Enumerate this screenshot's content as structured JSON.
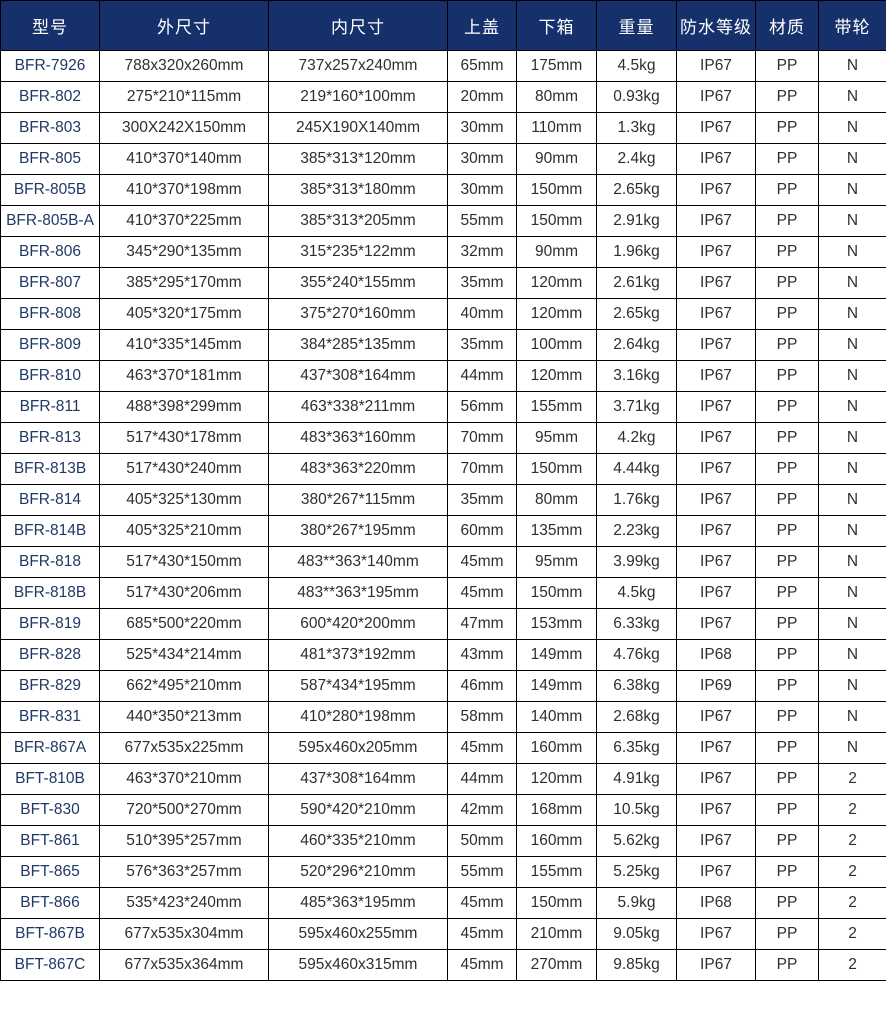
{
  "colors": {
    "header_bg": "#16306b",
    "header_text": "#ffffff",
    "border": "#000000",
    "model_text": "#1f3864",
    "body_text": "#2e2e2e"
  },
  "table": {
    "headers": [
      "型号",
      "外尺寸",
      "内尺寸",
      "上盖",
      "下箱",
      "重量",
      "防水等级",
      "材质",
      "带轮"
    ],
    "rows": [
      [
        "BFR-7926",
        "788x320x260mm",
        "737x257x240mm",
        "65mm",
        "175mm",
        "4.5kg",
        "IP67",
        "PP",
        "N"
      ],
      [
        "BFR-802",
        "275*210*115mm",
        "219*160*100mm",
        "20mm",
        "80mm",
        "0.93kg",
        "IP67",
        "PP",
        "N"
      ],
      [
        "BFR-803",
        "300X242X150mm",
        "245X190X140mm",
        "30mm",
        "110mm",
        "1.3kg",
        "IP67",
        "PP",
        "N"
      ],
      [
        "BFR-805",
        "410*370*140mm",
        "385*313*120mm",
        "30mm",
        "90mm",
        "2.4kg",
        "IP67",
        "PP",
        "N"
      ],
      [
        "BFR-805B",
        "410*370*198mm",
        "385*313*180mm",
        "30mm",
        "150mm",
        "2.65kg",
        "IP67",
        "PP",
        "N"
      ],
      [
        "BFR-805B-A",
        "410*370*225mm",
        "385*313*205mm",
        "55mm",
        "150mm",
        "2.91kg",
        "IP67",
        "PP",
        "N"
      ],
      [
        "BFR-806",
        "345*290*135mm",
        "315*235*122mm",
        "32mm",
        "90mm",
        "1.96kg",
        "IP67",
        "PP",
        "N"
      ],
      [
        "BFR-807",
        "385*295*170mm",
        "355*240*155mm",
        "35mm",
        "120mm",
        "2.61kg",
        "IP67",
        "PP",
        "N"
      ],
      [
        "BFR-808",
        "405*320*175mm",
        "375*270*160mm",
        "40mm",
        "120mm",
        "2.65kg",
        "IP67",
        "PP",
        "N"
      ],
      [
        "BFR-809",
        "410*335*145mm",
        "384*285*135mm",
        "35mm",
        "100mm",
        "2.64kg",
        "IP67",
        "PP",
        "N"
      ],
      [
        "BFR-810",
        "463*370*181mm",
        "437*308*164mm",
        "44mm",
        "120mm",
        "3.16kg",
        "IP67",
        "PP",
        "N"
      ],
      [
        "BFR-811",
        "488*398*299mm",
        "463*338*211mm",
        "56mm",
        "155mm",
        "3.71kg",
        "IP67",
        "PP",
        "N"
      ],
      [
        "BFR-813",
        "517*430*178mm",
        "483*363*160mm",
        "70mm",
        "95mm",
        "4.2kg",
        "IP67",
        "PP",
        "N"
      ],
      [
        "BFR-813B",
        "517*430*240mm",
        "483*363*220mm",
        "70mm",
        "150mm",
        "4.44kg",
        "IP67",
        "PP",
        "N"
      ],
      [
        "BFR-814",
        "405*325*130mm",
        "380*267*115mm",
        "35mm",
        "80mm",
        "1.76kg",
        "IP67",
        "PP",
        "N"
      ],
      [
        "BFR-814B",
        "405*325*210mm",
        "380*267*195mm",
        "60mm",
        "135mm",
        "2.23kg",
        "IP67",
        "PP",
        "N"
      ],
      [
        "BFR-818",
        "517*430*150mm",
        "483**363*140mm",
        "45mm",
        "95mm",
        "3.99kg",
        "IP67",
        "PP",
        "N"
      ],
      [
        "BFR-818B",
        "517*430*206mm",
        "483**363*195mm",
        "45mm",
        "150mm",
        "4.5kg",
        "IP67",
        "PP",
        "N"
      ],
      [
        "BFR-819",
        "685*500*220mm",
        "600*420*200mm",
        "47mm",
        "153mm",
        "6.33kg",
        "IP67",
        "PP",
        "N"
      ],
      [
        "BFR-828",
        "525*434*214mm",
        "481*373*192mm",
        "43mm",
        "149mm",
        "4.76kg",
        "IP68",
        "PP",
        "N"
      ],
      [
        "BFR-829",
        "662*495*210mm",
        "587*434*195mm",
        "46mm",
        "149mm",
        "6.38kg",
        "IP69",
        "PP",
        "N"
      ],
      [
        "BFR-831",
        "440*350*213mm",
        "410*280*198mm",
        "58mm",
        "140mm",
        "2.68kg",
        "IP67",
        "PP",
        "N"
      ],
      [
        "BFR-867A",
        "677x535x225mm",
        "595x460x205mm",
        "45mm",
        "160mm",
        "6.35kg",
        "IP67",
        "PP",
        "N"
      ],
      [
        "BFT-810B",
        "463*370*210mm",
        "437*308*164mm",
        "44mm",
        "120mm",
        "4.91kg",
        "IP67",
        "PP",
        "2"
      ],
      [
        "BFT-830",
        "720*500*270mm",
        "590*420*210mm",
        "42mm",
        "168mm",
        "10.5kg",
        "IP67",
        "PP",
        "2"
      ],
      [
        "BFT-861",
        "510*395*257mm",
        "460*335*210mm",
        "50mm",
        "160mm",
        "5.62kg",
        "IP67",
        "PP",
        "2"
      ],
      [
        "BFT-865",
        "576*363*257mm",
        "520*296*210mm",
        "55mm",
        "155mm",
        "5.25kg",
        "IP67",
        "PP",
        "2"
      ],
      [
        "BFT-866",
        "535*423*240mm",
        "485*363*195mm",
        "45mm",
        "150mm",
        "5.9kg",
        "IP68",
        "PP",
        "2"
      ],
      [
        "BFT-867B",
        "677x535x304mm",
        "595x460x255mm",
        "45mm",
        "210mm",
        "9.05kg",
        "IP67",
        "PP",
        "2"
      ],
      [
        "BFT-867C",
        "677x535x364mm",
        "595x460x315mm",
        "45mm",
        "270mm",
        "9.85kg",
        "IP67",
        "PP",
        "2"
      ]
    ]
  }
}
